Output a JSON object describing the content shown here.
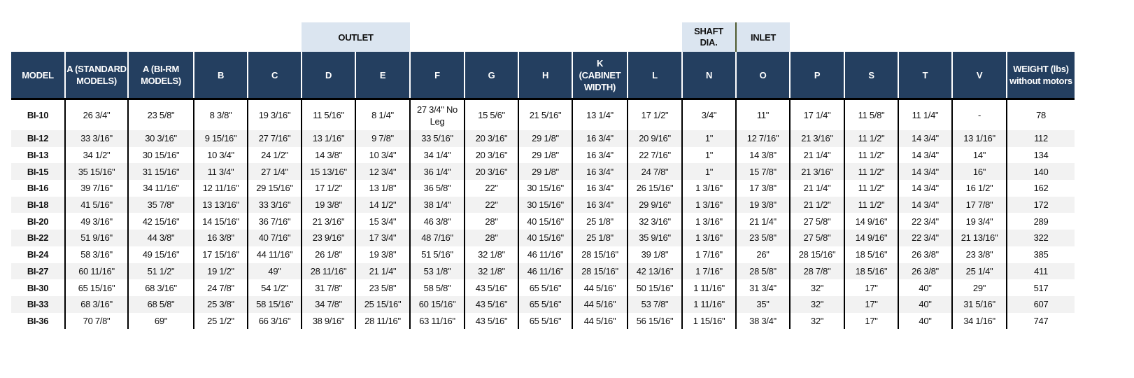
{
  "group_labels": {
    "outlet": "OUTLET",
    "shaft": "SHAFT DIA.",
    "inlet": "INLET"
  },
  "colors": {
    "header_bg": "#243f60",
    "group_band": "#dbe5f0",
    "alt_row": "#f2f2f2"
  },
  "columns": [
    "MODEL",
    "A (STANDARD MODELS)",
    "A (BI-RM MODELS)",
    "B",
    "C",
    "D",
    "E",
    "F",
    "G",
    "H",
    "K (CABINET WIDTH)",
    "L",
    "N",
    "O",
    "P",
    "S",
    "T",
    "V",
    "WEIGHT (lbs) without motors"
  ],
  "rows": [
    [
      "BI-10",
      "26 3/4\"",
      "23 5/8\"",
      "8 3/8\"",
      "19 3/16\"",
      "11 5/16\"",
      "8 1/4\"",
      "27 3/4\" No Leg",
      "15 5/6\"",
      "21 5/16\"",
      "13 1/4\"",
      "17 1/2\"",
      "3/4\"",
      "11\"",
      "17 1/4\"",
      "11 5/8\"",
      "11 1/4\"",
      "-",
      "78"
    ],
    [
      "BI-12",
      "33 3/16\"",
      "30 3/16\"",
      "9 15/16\"",
      "27 7/16\"",
      "13 1/16\"",
      "9 7/8\"",
      "33 5/16\"",
      "20 3/16\"",
      "29 1/8\"",
      "16 3/4\"",
      "20 9/16\"",
      "1\"",
      "12 7/16\"",
      "21 3/16\"",
      "11 1/2\"",
      "14 3/4\"",
      "13 1/16\"",
      "112"
    ],
    [
      "BI-13",
      "34 1/2\"",
      "30 15/16\"",
      "10 3/4\"",
      "24 1/2\"",
      "14 3/8\"",
      "10 3/4\"",
      "34 1/4\"",
      "20 3/16\"",
      "29 1/8\"",
      "16 3/4\"",
      "22 7/16\"",
      "1\"",
      "14 3/8\"",
      "21 1/4\"",
      "11 1/2\"",
      "14 3/4\"",
      "14\"",
      "134"
    ],
    [
      "BI-15",
      "35 15/16\"",
      "31 15/16\"",
      "11 3/4\"",
      "27 1/4\"",
      "15 13/16\"",
      "12 3/4\"",
      "36 1/4\"",
      "20 3/16\"",
      "29 1/8\"",
      "16 3/4\"",
      "24 7/8\"",
      "1\"",
      "15 7/8\"",
      "21 3/16\"",
      "11 1/2\"",
      "14 3/4\"",
      "16\"",
      "140"
    ],
    [
      "BI-16",
      "39 7/16\"",
      "34 11/16\"",
      "12 11/16\"",
      "29 15/16\"",
      "17 1/2\"",
      "13 1/8\"",
      "36 5/8\"",
      "22\"",
      "30 15/16\"",
      "16 3/4\"",
      "26 15/16\"",
      "1 3/16\"",
      "17 3/8\"",
      "21 1/4\"",
      "11 1/2\"",
      "14 3/4\"",
      "16 1/2\"",
      "162"
    ],
    [
      "BI-18",
      "41 5/16\"",
      "35 7/8\"",
      "13 13/16\"",
      "33 3/16\"",
      "19 3/8\"",
      "14 1/2\"",
      "38 1/4\"",
      "22\"",
      "30 15/16\"",
      "16 3/4\"",
      "29 9/16\"",
      "1 3/16\"",
      "19 3/8\"",
      "21 1/2\"",
      "11 1/2\"",
      "14 3/4\"",
      "17 7/8\"",
      "172"
    ],
    [
      "BI-20",
      "49 3/16\"",
      "42 15/16\"",
      "14 15/16\"",
      "36 7/16\"",
      "21 3/16\"",
      "15 3/4\"",
      "46 3/8\"",
      "28\"",
      "40 15/16\"",
      "25 1/8\"",
      "32 3/16\"",
      "1 3/16\"",
      "21 1/4\"",
      "27 5/8\"",
      "14 9/16\"",
      "22 3/4\"",
      "19 3/4\"",
      "289"
    ],
    [
      "BI-22",
      "51 9/16\"",
      "44 3/8\"",
      "16 3/8\"",
      "40 7/16\"",
      "23 9/16\"",
      "17 3/4\"",
      "48 7/16\"",
      "28\"",
      "40 15/16\"",
      "25 1/8\"",
      "35 9/16\"",
      "1 3/16\"",
      "23 5/8\"",
      "27 5/8\"",
      "14 9/16\"",
      "22 3/4\"",
      "21 13/16\"",
      "322"
    ],
    [
      "BI-24",
      "58 3/16\"",
      "49 15/16\"",
      "17 15/16\"",
      "44 11/16\"",
      "26 1/8\"",
      "19 3/8\"",
      "51 5/16\"",
      "32 1/8\"",
      "46 11/16\"",
      "28 15/16\"",
      "39 1/8\"",
      "1 7/16\"",
      "26\"",
      "28 15/16\"",
      "18 5/16\"",
      "26 3/8\"",
      "23 3/8\"",
      "385"
    ],
    [
      "BI-27",
      "60 11/16\"",
      "51 1/2\"",
      "19 1/2\"",
      "49\"",
      "28 11/16\"",
      "21 1/4\"",
      "53 1/8\"",
      "32 1/8\"",
      "46 11/16\"",
      "28 15/16\"",
      "42 13/16\"",
      "1 7/16\"",
      "28 5/8\"",
      "28 7/8\"",
      "18 5/16\"",
      "26 3/8\"",
      "25 1/4\"",
      "411"
    ],
    [
      "BI-30",
      "65 15/16\"",
      "68 3/16\"",
      "24 7/8\"",
      "54 1/2\"",
      "31 7/8\"",
      "23 5/8\"",
      "58 5/8\"",
      "43 5/16\"",
      "65 5/16\"",
      "44 5/16\"",
      "50 15/16\"",
      "1 11/16\"",
      "31 3/4\"",
      "32\"",
      "17\"",
      "40\"",
      "29\"",
      "517"
    ],
    [
      "BI-33",
      "68 3/16\"",
      "68 5/8\"",
      "25 3/8\"",
      "58 15/16\"",
      "34 7/8\"",
      "25 15/16\"",
      "60 15/16\"",
      "43 5/16\"",
      "65 5/16\"",
      "44 5/16\"",
      "53 7/8\"",
      "1 11/16\"",
      "35\"",
      "32\"",
      "17\"",
      "40\"",
      "31 5/16\"",
      "607"
    ],
    [
      "BI-36",
      "70 7/8\"",
      "69\"",
      "25 1/2\"",
      "66 3/16\"",
      "38 9/16\"",
      "28 11/16\"",
      "63 11/16\"",
      "43 5/16\"",
      "65 5/16\"",
      "44 5/16\"",
      "56 15/16\"",
      "1 15/16\"",
      "38 3/4\"",
      "32\"",
      "17\"",
      "40\"",
      "34 1/16\"",
      "747"
    ]
  ]
}
